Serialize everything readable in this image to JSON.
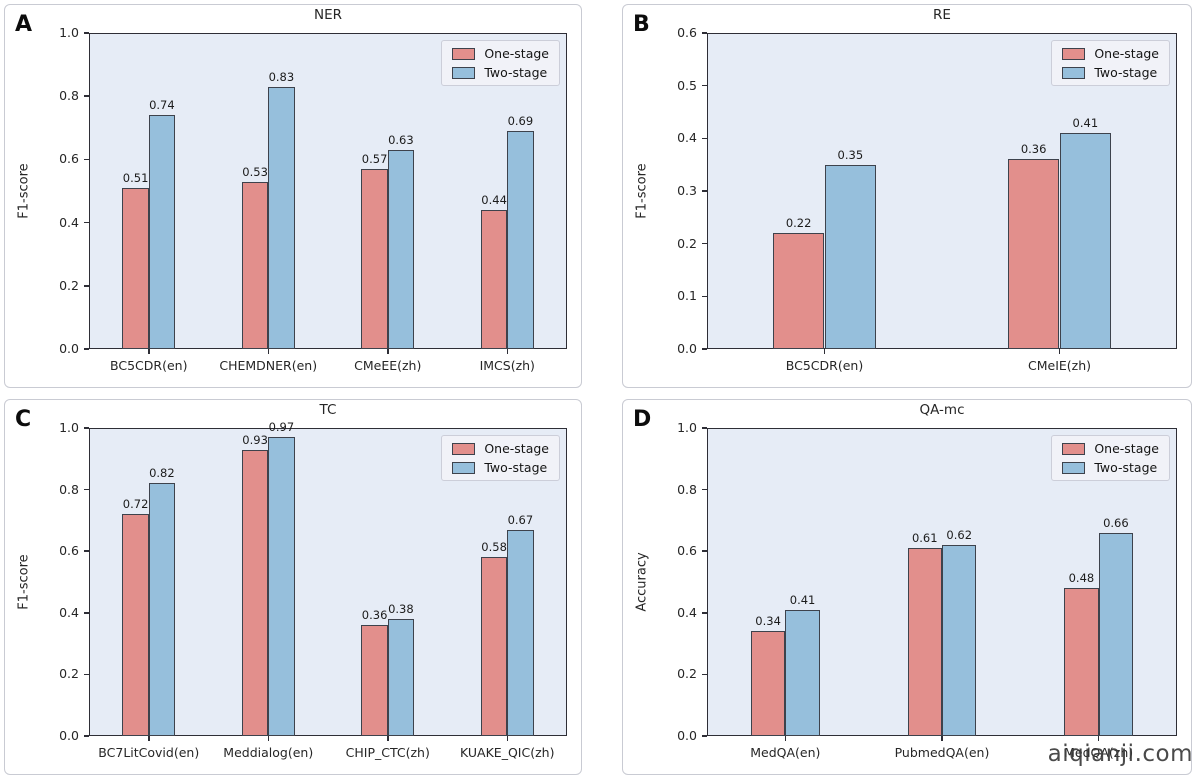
{
  "figure": {
    "watermark": "aiqianji.com",
    "legend_labels": [
      "One-stage",
      "Two-stage"
    ],
    "colors": {
      "one_stage_fill": "#e28f8c",
      "two_stage_fill": "#96bfdc",
      "bar_edge": "#3d424c",
      "plot_background": "#e6ecf6",
      "axis_spine": "#2e2e36",
      "text": "#262626",
      "panel_border": "#c9cbd3"
    }
  },
  "chart_data": [
    {
      "panel": "A",
      "type": "bar",
      "title": "NER",
      "xlabel": "",
      "ylabel": "F1-score",
      "ylim": [
        0.0,
        1.0
      ],
      "yticks": [
        "0.0",
        "0.2",
        "0.4",
        "0.6",
        "0.8",
        "1.0"
      ],
      "categories": [
        "BC5CDR(en)",
        "CHEMDNER(en)",
        "CMeEE(zh)",
        "IMCS(zh)"
      ],
      "series": [
        {
          "name": "One-stage",
          "values": [
            0.51,
            0.53,
            0.57,
            0.44
          ]
        },
        {
          "name": "Two-stage",
          "values": [
            0.74,
            0.83,
            0.63,
            0.69
          ]
        }
      ],
      "legend_position": "upper right",
      "grid": false
    },
    {
      "panel": "B",
      "type": "bar",
      "title": "RE",
      "xlabel": "",
      "ylabel": "F1-score",
      "ylim": [
        0.0,
        0.6
      ],
      "yticks": [
        "0.0",
        "0.1",
        "0.2",
        "0.3",
        "0.4",
        "0.5",
        "0.6"
      ],
      "categories": [
        "BC5CDR(en)",
        "CMeIE(zh)"
      ],
      "series": [
        {
          "name": "One-stage",
          "values": [
            0.22,
            0.36
          ]
        },
        {
          "name": "Two-stage",
          "values": [
            0.35,
            0.41
          ]
        }
      ],
      "legend_position": "upper right",
      "grid": false
    },
    {
      "panel": "C",
      "type": "bar",
      "title": "TC",
      "xlabel": "",
      "ylabel": "F1-score",
      "ylim": [
        0.0,
        1.0
      ],
      "yticks": [
        "0.0",
        "0.2",
        "0.4",
        "0.6",
        "0.8",
        "1.0"
      ],
      "categories": [
        "BC7LitCovid(en)",
        "Meddialog(en)",
        "CHIP_CTC(zh)",
        "KUAKE_QIC(zh)"
      ],
      "series": [
        {
          "name": "One-stage",
          "values": [
            0.72,
            0.93,
            0.36,
            0.58
          ]
        },
        {
          "name": "Two-stage",
          "values": [
            0.82,
            0.97,
            0.38,
            0.67
          ]
        }
      ],
      "legend_position": "upper right",
      "grid": false
    },
    {
      "panel": "D",
      "type": "bar",
      "title": "QA-mc",
      "xlabel": "",
      "ylabel": "Accuracy",
      "ylim": [
        0.0,
        1.0
      ],
      "yticks": [
        "0.0",
        "0.2",
        "0.4",
        "0.6",
        "0.8",
        "1.0"
      ],
      "categories": [
        "MedQA(en)",
        "PubmedQA(en)",
        "MedQA(zh)"
      ],
      "series": [
        {
          "name": "One-stage",
          "values": [
            0.34,
            0.61,
            0.48
          ]
        },
        {
          "name": "Two-stage",
          "values": [
            0.41,
            0.62,
            0.66
          ]
        }
      ],
      "legend_position": "upper right",
      "grid": false
    }
  ]
}
